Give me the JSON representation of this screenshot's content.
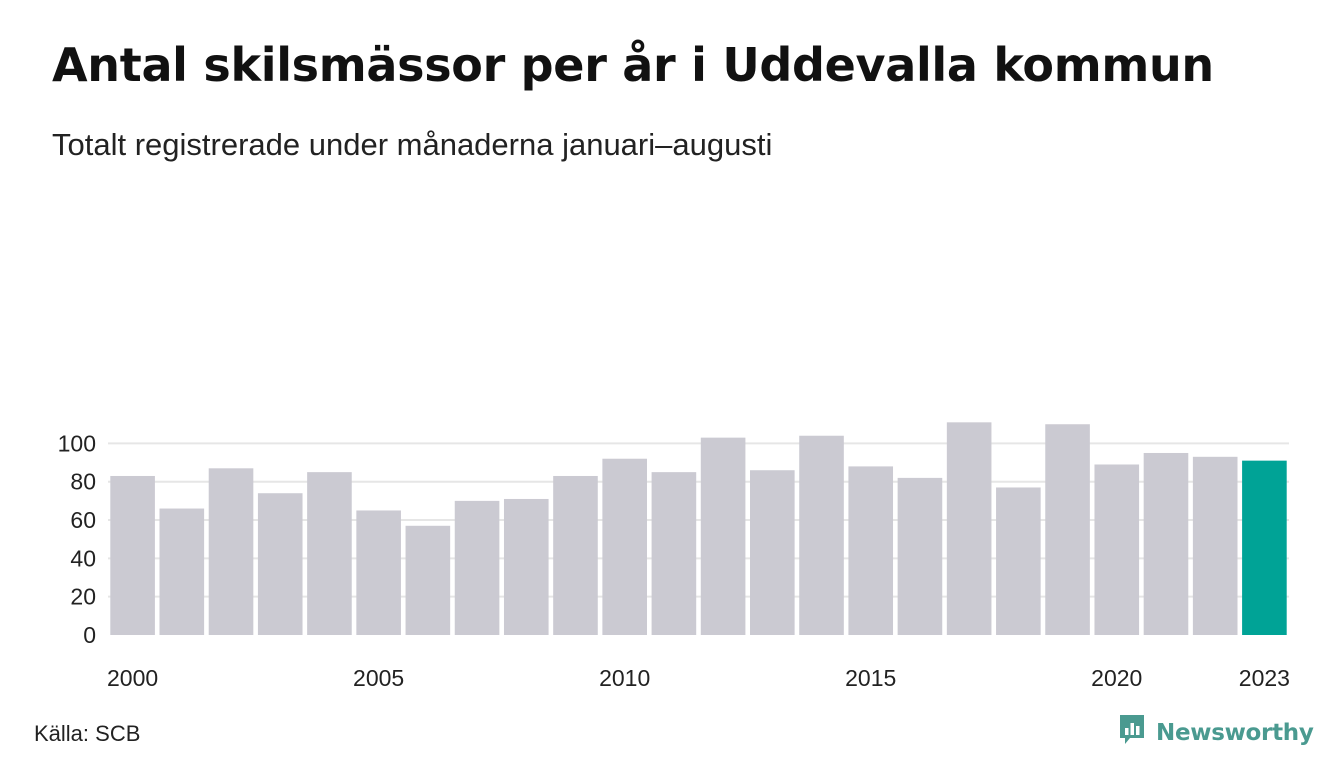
{
  "header": {
    "title": "Antal skilsmässor per år i Uddevalla kommun",
    "subtitle": "Totalt registrerade under månaderna januari–augusti"
  },
  "footer": {
    "source": "Källa: SCB",
    "brand": "Newsworthy",
    "brand_icon": "bar-chart-speech-bubble-icon"
  },
  "colors": {
    "bar": "#cbcad2",
    "highlight": "#00a396",
    "grid": "#e6e6e6",
    "brand": "#4a9a90"
  },
  "chart_data": {
    "type": "bar",
    "title": "Antal skilsmässor per år i Uddevalla kommun",
    "subtitle": "Totalt registrerade under månaderna januari–augusti",
    "xlabel": "",
    "ylabel": "",
    "categories": [
      "2000",
      "2001",
      "2002",
      "2003",
      "2004",
      "2005",
      "2006",
      "2007",
      "2008",
      "2009",
      "2010",
      "2011",
      "2012",
      "2013",
      "2014",
      "2015",
      "2016",
      "2017",
      "2018",
      "2019",
      "2020",
      "2021",
      "2022",
      "2023"
    ],
    "values": [
      83,
      66,
      87,
      74,
      85,
      65,
      57,
      70,
      71,
      83,
      92,
      85,
      103,
      86,
      104,
      88,
      82,
      111,
      77,
      110,
      89,
      95,
      93,
      91
    ],
    "highlight_category": "2023",
    "x_tick_labels": [
      "2000",
      "2005",
      "2010",
      "2015",
      "2020",
      "2023"
    ],
    "y_ticks": [
      0,
      20,
      40,
      60,
      80,
      100
    ],
    "ylim": [
      0,
      111
    ],
    "grid": true
  }
}
